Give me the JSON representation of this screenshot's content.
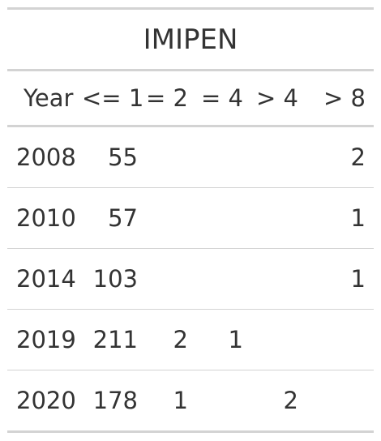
{
  "table": {
    "title": "IMIPEN",
    "columns": [
      "Year",
      "<= 1",
      "= 2",
      "= 4",
      "> 4",
      "> 8"
    ],
    "rows": [
      {
        "year": "2008",
        "le1": "55",
        "eq2": "",
        "eq4": "",
        "gt4": "",
        "gt8": "2"
      },
      {
        "year": "2010",
        "le1": "57",
        "eq2": "",
        "eq4": "",
        "gt4": "",
        "gt8": "1"
      },
      {
        "year": "2014",
        "le1": "103",
        "eq2": "",
        "eq4": "",
        "gt4": "",
        "gt8": "1"
      },
      {
        "year": "2019",
        "le1": "211",
        "eq2": "2",
        "eq4": "1",
        "gt4": "",
        "gt8": ""
      },
      {
        "year": "2020",
        "le1": "178",
        "eq2": "1",
        "eq4": "",
        "gt4": "2",
        "gt8": ""
      }
    ]
  }
}
